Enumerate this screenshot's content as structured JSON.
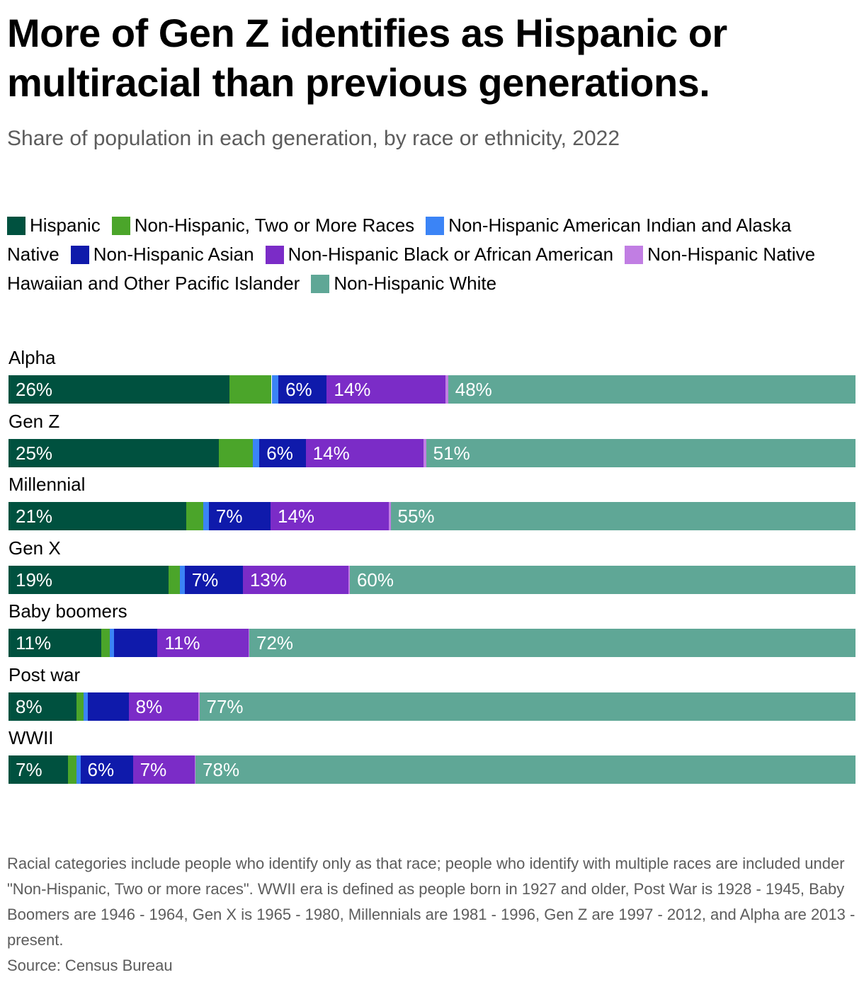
{
  "chart_data": {
    "type": "bar",
    "orientation": "horizontal",
    "stacked": true,
    "title": "More of Gen Z identifies as Hispanic or multiracial than previous generations.",
    "subtitle": "Share of population in each generation, by race or ethnicity, 2022",
    "categories": [
      "Alpha",
      "Gen Z",
      "Millennial",
      "Gen X",
      "Baby boomers",
      "Post war",
      "WWII"
    ],
    "series": [
      {
        "name": "Hispanic",
        "color": "#00513f",
        "values": [
          26,
          25,
          21,
          19,
          11,
          8,
          7
        ],
        "labels": [
          "26%",
          "25%",
          "21%",
          "19%",
          "11%",
          "8%",
          "7%"
        ]
      },
      {
        "name": "Non-Hispanic, Two or More Races",
        "color": "#4ba52a",
        "values": [
          5,
          4,
          2,
          1.3,
          1,
          0.8,
          1
        ],
        "labels": [
          "",
          "",
          "",
          "",
          "",
          "",
          ""
        ]
      },
      {
        "name": "Non-Hispanic American Indian and Alaska Native",
        "color": "#3b84f6",
        "values": [
          0.8,
          0.8,
          0.7,
          0.6,
          0.5,
          0.5,
          0.5
        ],
        "labels": [
          "",
          "",
          "",
          "",
          "",
          "",
          ""
        ]
      },
      {
        "name": "Non-Hispanic Asian",
        "color": "#0f1aab",
        "values": [
          5.7,
          5.5,
          7.3,
          6.9,
          5.2,
          4.8,
          6.2
        ],
        "labels": [
          "6%",
          "6%",
          "7%",
          "7%",
          "",
          "",
          "6%"
        ]
      },
      {
        "name": "Non-Hispanic Black or African American",
        "color": "#7b2cc7",
        "values": [
          14,
          14,
          14,
          12.5,
          10.8,
          8.2,
          7.3
        ],
        "labels": [
          "14%",
          "14%",
          "14%",
          "13%",
          "11%",
          "8%",
          "7%"
        ]
      },
      {
        "name": "Non-Hispanic Native Hawaiian and Other Pacific Islander",
        "color": "#c17ee3",
        "values": [
          0.3,
          0.3,
          0.2,
          0.2,
          0.1,
          0.1,
          0.1
        ],
        "labels": [
          "",
          "",
          "",
          "",
          "",
          "",
          ""
        ]
      },
      {
        "name": "Non-Hispanic White",
        "color": "#5fa796",
        "values": [
          48,
          51,
          55,
          60,
          72,
          77,
          78
        ],
        "labels": [
          "48%",
          "51%",
          "55%",
          "60%",
          "72%",
          "77%",
          "78%"
        ]
      }
    ],
    "xlim": [
      0,
      100
    ],
    "legend": "top"
  },
  "footer": {
    "note": "Racial categories include people who identify only as that race; people who identify with multiple races are included under \"Non-Hispanic, Two or more races\". WWII era is defined as people born in 1927 and older, Post War is 1928 - 1945, Baby Boomers are 1946 - 1964, Gen X is 1965 - 1980, Millennials are 1981 - 1996, Gen Z are 1997 - 2012, and Alpha are 2013 - present.",
    "source": "Source: Census Bureau"
  }
}
